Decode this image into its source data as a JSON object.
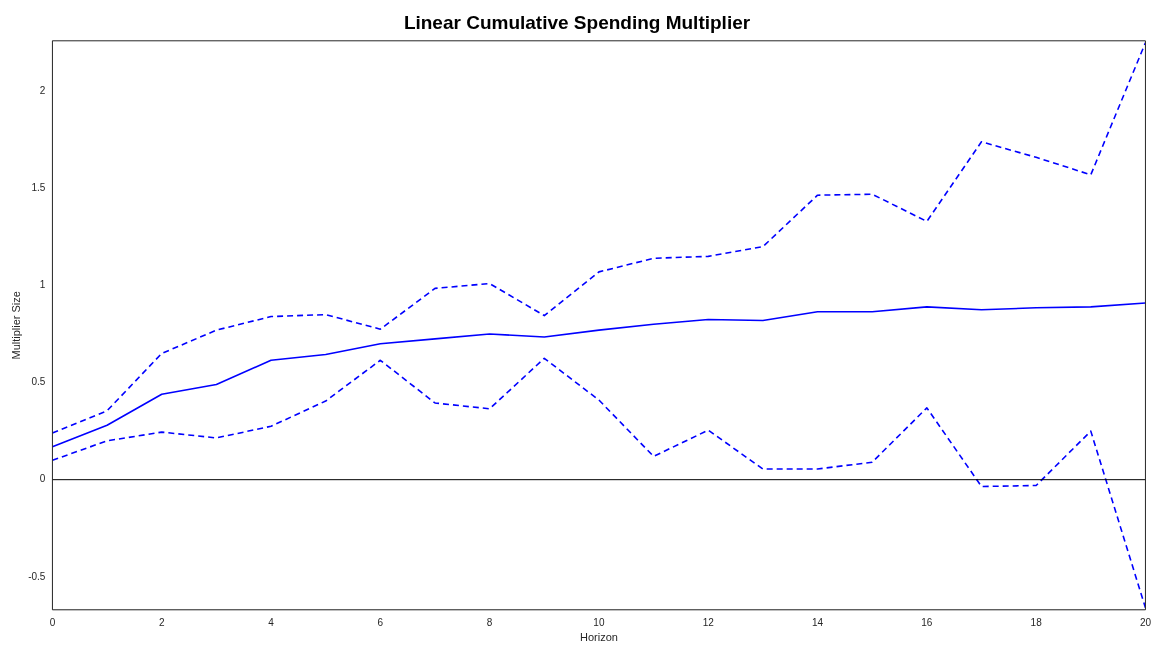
{
  "chart_data": {
    "type": "line",
    "title": "Linear Cumulative Spending Multiplier",
    "xlabel": "Horizon",
    "ylabel": "Multiplier Size",
    "x": [
      0,
      1,
      2,
      3,
      4,
      5,
      6,
      7,
      8,
      9,
      10,
      11,
      12,
      13,
      14,
      15,
      16,
      17,
      18,
      19,
      20
    ],
    "series": [
      {
        "color": "#0000ff",
        "line_style": "solid",
        "values": [
          0.17,
          0.28,
          0.44,
          0.49,
          0.615,
          0.645,
          0.7,
          0.725,
          0.75,
          0.735,
          0.77,
          0.8,
          0.825,
          0.82,
          0.865,
          0.865,
          0.89,
          0.875,
          0.885,
          0.89,
          0.91
        ]
      },
      {
        "color": "#0000ff",
        "line_style": "dashed",
        "values": [
          0.24,
          0.355,
          0.65,
          0.77,
          0.84,
          0.85,
          0.775,
          0.985,
          1.01,
          0.845,
          1.07,
          1.14,
          1.15,
          1.2,
          1.465,
          1.47,
          1.33,
          1.74,
          1.66,
          1.57,
          2.25
        ]
      },
      {
        "color": "#0000ff",
        "line_style": "dashed",
        "values": [
          0.1,
          0.2,
          0.245,
          0.215,
          0.275,
          0.405,
          0.615,
          0.395,
          0.365,
          0.625,
          0.41,
          0.12,
          0.255,
          0.055,
          0.055,
          0.09,
          0.37,
          -0.035,
          -0.03,
          0.25,
          -0.66
        ]
      }
    ],
    "xlim": [
      0,
      20
    ],
    "xticks": [
      0,
      2,
      4,
      6,
      8,
      10,
      12,
      14,
      16,
      18,
      20
    ],
    "ylim": [
      -0.67,
      2.26
    ],
    "yticks": [
      -0.5,
      0,
      0.5,
      1,
      1.5,
      2
    ],
    "ref_lines": [
      {
        "axis": "y",
        "value": 0,
        "color": "#000000"
      }
    ],
    "grid": false,
    "legend": false,
    "marker": "none"
  }
}
